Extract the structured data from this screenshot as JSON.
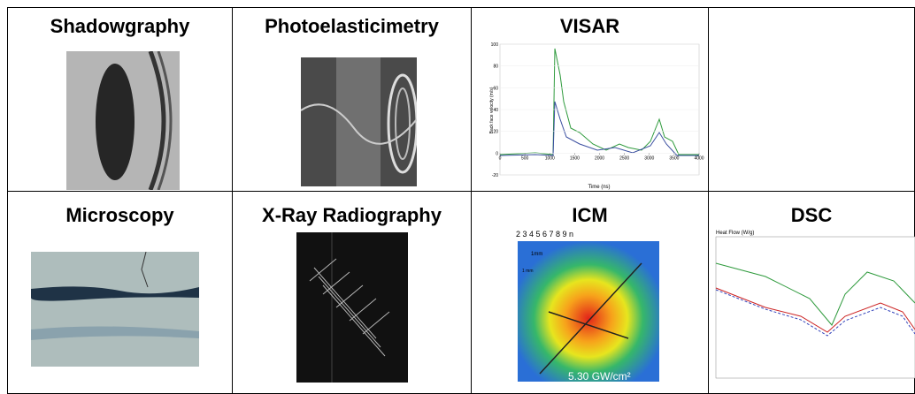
{
  "table": {
    "rows": [
      [
        {
          "title": "Shadowgraphy"
        },
        {
          "title": "Photoelasticimetry"
        },
        {
          "title": "VISAR",
          "image": {
            "y_label": "Back face velocity (m/s)",
            "x_label": "Time (ns)",
            "yticks": [
              100,
              80,
              60,
              40,
              20,
              0,
              -20
            ],
            "xticks": [
              0,
              500,
              1000,
              1500,
              2000,
              2500,
              3000,
              3500,
              4000
            ]
          }
        }
      ],
      [
        {
          "title": "Microscopy"
        },
        {
          "title": "X-Ray Radiography"
        },
        {
          "title": "ICM",
          "image": {
            "scale": "2   3   4   5   6   7   8   9 n",
            "bar_label": "1mm",
            "side_label": "1 mm",
            "intensity": "5.30 GW/cm²"
          }
        },
        {
          "title": "DSC",
          "image": {
            "y_label": "Heat Flow (W/g)"
          }
        }
      ]
    ]
  }
}
